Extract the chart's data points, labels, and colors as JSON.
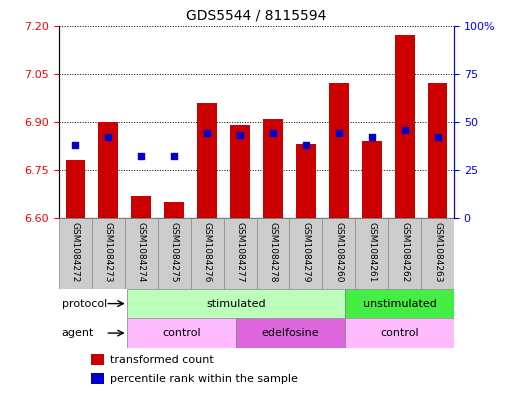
{
  "title": "GDS5544 / 8115594",
  "samples": [
    "GSM1084272",
    "GSM1084273",
    "GSM1084274",
    "GSM1084275",
    "GSM1084276",
    "GSM1084277",
    "GSM1084278",
    "GSM1084279",
    "GSM1084260",
    "GSM1084261",
    "GSM1084262",
    "GSM1084263"
  ],
  "bar_values": [
    6.78,
    6.9,
    6.67,
    6.65,
    6.96,
    6.89,
    6.91,
    6.83,
    7.02,
    6.84,
    7.17,
    7.02
  ],
  "percentile_values": [
    38,
    42,
    32,
    32,
    44,
    43,
    44,
    38,
    44,
    42,
    46,
    42
  ],
  "ylim_left": [
    6.6,
    7.2
  ],
  "ylim_right": [
    0,
    100
  ],
  "yticks_left": [
    6.6,
    6.75,
    6.9,
    7.05,
    7.2
  ],
  "yticks_right": [
    0,
    25,
    50,
    75,
    100
  ],
  "bar_color": "#cc0000",
  "dot_color": "#0000cc",
  "protocol_labels": [
    {
      "label": "stimulated",
      "start": 0,
      "end": 8,
      "color": "#bbffbb"
    },
    {
      "label": "unstimulated",
      "start": 8,
      "end": 12,
      "color": "#44ee44"
    }
  ],
  "agent_labels": [
    {
      "label": "control",
      "start": 0,
      "end": 4,
      "color": "#ffbbff"
    },
    {
      "label": "edelfosine",
      "start": 4,
      "end": 8,
      "color": "#dd66dd"
    },
    {
      "label": "control",
      "start": 8,
      "end": 12,
      "color": "#ffbbff"
    }
  ],
  "legend_items": [
    {
      "label": "transformed count",
      "color": "#cc0000"
    },
    {
      "label": "percentile rank within the sample",
      "color": "#0000cc"
    }
  ],
  "bar_width": 0.6,
  "base_value": 6.6,
  "sample_cell_color": "#cccccc",
  "sample_cell_edge": "#888888"
}
